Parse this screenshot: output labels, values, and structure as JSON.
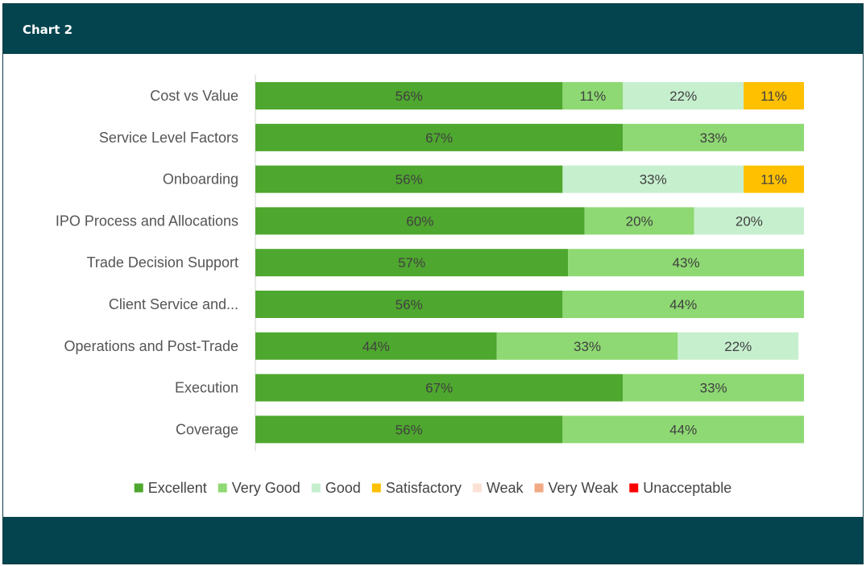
{
  "header": {
    "title": "Chart 2"
  },
  "colors": {
    "header_bg": "#03444e",
    "Excellent": "#4ea72e",
    "Very Good": "#8ed973",
    "Good": "#c6efce",
    "Satisfactory": "#ffc000",
    "Weak": "#fbe2d5",
    "Very Weak": "#f1a983",
    "Unacceptable": "#ff0000"
  },
  "chart_data": {
    "type": "bar",
    "orientation": "horizontal",
    "stacked": true,
    "normalized": "percent",
    "categories": [
      "Cost vs Value",
      "Service Level Factors",
      "Onboarding",
      "IPO Process and Allocations",
      "Trade Decision Support",
      "Client Service and...",
      "Operations and Post-Trade",
      "Execution",
      "Coverage"
    ],
    "series": [
      {
        "name": "Excellent",
        "values": [
          56,
          67,
          56,
          60,
          57,
          56,
          44,
          67,
          56
        ]
      },
      {
        "name": "Very Good",
        "values": [
          11,
          33,
          0,
          20,
          43,
          44,
          33,
          33,
          44
        ]
      },
      {
        "name": "Good",
        "values": [
          22,
          0,
          33,
          20,
          0,
          0,
          22,
          0,
          0
        ]
      },
      {
        "name": "Satisfactory",
        "values": [
          11,
          0,
          11,
          0,
          0,
          0,
          0,
          0,
          0
        ]
      },
      {
        "name": "Weak",
        "values": [
          0,
          0,
          0,
          0,
          0,
          0,
          0,
          0,
          0
        ]
      },
      {
        "name": "Very Weak",
        "values": [
          0,
          0,
          0,
          0,
          0,
          0,
          0,
          0,
          0
        ]
      },
      {
        "name": "Unacceptable",
        "values": [
          0,
          0,
          0,
          0,
          0,
          0,
          0,
          0,
          0
        ]
      }
    ],
    "data_label_suffix": "%",
    "legend": {
      "position": "bottom",
      "entries": [
        "Excellent",
        "Very Good",
        "Good",
        "Satisfactory",
        "Weak",
        "Very Weak",
        "Unacceptable"
      ]
    },
    "grid": false
  }
}
